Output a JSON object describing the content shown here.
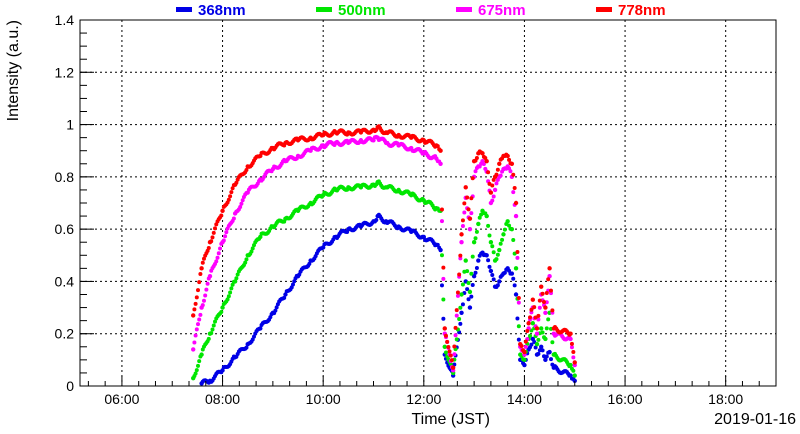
{
  "chart_data": {
    "type": "scatter",
    "xlabel": "Time (JST)",
    "ylabel": "Intensity (a.u.)",
    "date_label": "2019-01-16",
    "xlim": [
      "05:10",
      "19:00"
    ],
    "ylim": [
      0,
      1.4
    ],
    "x_ticks": [
      "06:00",
      "08:00",
      "10:00",
      "12:00",
      "14:00",
      "16:00",
      "18:00"
    ],
    "y_ticks": [
      "0",
      "0.2",
      "0.4",
      "0.6",
      "0.8",
      "1",
      "1.2",
      "1.4"
    ],
    "grid": true,
    "legend_position": "top",
    "series": [
      {
        "name": "368nm",
        "color": "#0000e6",
        "points": [
          [
            "07:35",
            0.01
          ],
          [
            "07:45",
            0.02
          ],
          [
            "08:00",
            0.06
          ],
          [
            "08:15",
            0.11
          ],
          [
            "08:30",
            0.16
          ],
          [
            "08:45",
            0.22
          ],
          [
            "09:00",
            0.28
          ],
          [
            "09:15",
            0.35
          ],
          [
            "09:30",
            0.42
          ],
          [
            "09:45",
            0.48
          ],
          [
            "10:00",
            0.53
          ],
          [
            "10:15",
            0.57
          ],
          [
            "10:30",
            0.6
          ],
          [
            "10:45",
            0.61
          ],
          [
            "11:00",
            0.63
          ],
          [
            "11:05",
            0.65
          ],
          [
            "11:15",
            0.63
          ],
          [
            "11:30",
            0.61
          ],
          [
            "11:45",
            0.59
          ],
          [
            "12:00",
            0.57
          ],
          [
            "12:15",
            0.54
          ],
          [
            "12:20",
            0.52
          ],
          [
            "12:25",
            0.12
          ],
          [
            "12:35",
            0.04
          ],
          [
            "12:45",
            0.28
          ],
          [
            "12:50",
            0.4
          ],
          [
            "12:55",
            0.3
          ],
          [
            "13:00",
            0.42
          ],
          [
            "13:05",
            0.48
          ],
          [
            "13:10",
            0.51
          ],
          [
            "13:15",
            0.5
          ],
          [
            "13:20",
            0.44
          ],
          [
            "13:25",
            0.38
          ],
          [
            "13:30",
            0.4
          ],
          [
            "13:35",
            0.43
          ],
          [
            "13:40",
            0.45
          ],
          [
            "13:45",
            0.43
          ],
          [
            "13:50",
            0.35
          ],
          [
            "13:55",
            0.1
          ],
          [
            "14:00",
            0.08
          ],
          [
            "14:05",
            0.14
          ],
          [
            "14:10",
            0.18
          ],
          [
            "14:15",
            0.12
          ],
          [
            "14:20",
            0.15
          ],
          [
            "14:25",
            0.1
          ],
          [
            "14:30",
            0.13
          ],
          [
            "14:35",
            0.07
          ],
          [
            "14:55",
            0.04
          ],
          [
            "15:00",
            0.02
          ]
        ]
      },
      {
        "name": "500nm",
        "color": "#00e600",
        "points": [
          [
            "07:25",
            0.03
          ],
          [
            "07:35",
            0.12
          ],
          [
            "07:45",
            0.2
          ],
          [
            "08:00",
            0.3
          ],
          [
            "08:15",
            0.4
          ],
          [
            "08:30",
            0.5
          ],
          [
            "08:45",
            0.57
          ],
          [
            "09:00",
            0.61
          ],
          [
            "09:15",
            0.64
          ],
          [
            "09:30",
            0.67
          ],
          [
            "09:45",
            0.7
          ],
          [
            "10:00",
            0.73
          ],
          [
            "10:15",
            0.75
          ],
          [
            "10:30",
            0.76
          ],
          [
            "10:45",
            0.76
          ],
          [
            "11:00",
            0.77
          ],
          [
            "11:05",
            0.78
          ],
          [
            "11:15",
            0.76
          ],
          [
            "11:30",
            0.75
          ],
          [
            "11:45",
            0.73
          ],
          [
            "12:00",
            0.71
          ],
          [
            "12:15",
            0.68
          ],
          [
            "12:20",
            0.67
          ],
          [
            "12:25",
            0.15
          ],
          [
            "12:35",
            0.05
          ],
          [
            "12:45",
            0.35
          ],
          [
            "12:50",
            0.48
          ],
          [
            "12:55",
            0.36
          ],
          [
            "13:00",
            0.55
          ],
          [
            "13:05",
            0.62
          ],
          [
            "13:10",
            0.67
          ],
          [
            "13:15",
            0.65
          ],
          [
            "13:20",
            0.55
          ],
          [
            "13:25",
            0.48
          ],
          [
            "13:30",
            0.52
          ],
          [
            "13:35",
            0.58
          ],
          [
            "13:40",
            0.63
          ],
          [
            "13:45",
            0.6
          ],
          [
            "13:50",
            0.45
          ],
          [
            "13:55",
            0.12
          ],
          [
            "14:00",
            0.1
          ],
          [
            "14:05",
            0.18
          ],
          [
            "14:10",
            0.24
          ],
          [
            "14:15",
            0.16
          ],
          [
            "14:20",
            0.22
          ],
          [
            "14:25",
            0.18
          ],
          [
            "14:30",
            0.28
          ],
          [
            "14:35",
            0.12
          ],
          [
            "14:55",
            0.08
          ],
          [
            "15:00",
            0.04
          ]
        ]
      },
      {
        "name": "675nm",
        "color": "#ff00ff",
        "points": [
          [
            "07:25",
            0.14
          ],
          [
            "07:35",
            0.3
          ],
          [
            "07:45",
            0.42
          ],
          [
            "08:00",
            0.55
          ],
          [
            "08:15",
            0.66
          ],
          [
            "08:30",
            0.74
          ],
          [
            "08:45",
            0.79
          ],
          [
            "09:00",
            0.83
          ],
          [
            "09:15",
            0.86
          ],
          [
            "09:30",
            0.88
          ],
          [
            "09:45",
            0.9
          ],
          [
            "10:00",
            0.92
          ],
          [
            "10:15",
            0.93
          ],
          [
            "10:30",
            0.93
          ],
          [
            "10:45",
            0.94
          ],
          [
            "11:00",
            0.94
          ],
          [
            "11:05",
            0.95
          ],
          [
            "11:15",
            0.93
          ],
          [
            "11:30",
            0.92
          ],
          [
            "11:45",
            0.91
          ],
          [
            "12:00",
            0.89
          ],
          [
            "12:15",
            0.87
          ],
          [
            "12:20",
            0.85
          ],
          [
            "12:25",
            0.2
          ],
          [
            "12:35",
            0.06
          ],
          [
            "12:45",
            0.55
          ],
          [
            "12:50",
            0.72
          ],
          [
            "12:55",
            0.6
          ],
          [
            "13:00",
            0.8
          ],
          [
            "13:05",
            0.84
          ],
          [
            "13:10",
            0.86
          ],
          [
            "13:15",
            0.82
          ],
          [
            "13:20",
            0.7
          ],
          [
            "13:25",
            0.75
          ],
          [
            "13:30",
            0.8
          ],
          [
            "13:35",
            0.83
          ],
          [
            "13:40",
            0.84
          ],
          [
            "13:45",
            0.8
          ],
          [
            "13:50",
            0.65
          ],
          [
            "13:55",
            0.15
          ],
          [
            "14:00",
            0.12
          ],
          [
            "14:05",
            0.22
          ],
          [
            "14:10",
            0.3
          ],
          [
            "14:15",
            0.2
          ],
          [
            "14:20",
            0.35
          ],
          [
            "14:25",
            0.28
          ],
          [
            "14:30",
            0.42
          ],
          [
            "14:35",
            0.2
          ],
          [
            "14:55",
            0.18
          ],
          [
            "15:00",
            0.08
          ]
        ]
      },
      {
        "name": "778nm",
        "color": "#ff0000",
        "points": [
          [
            "07:25",
            0.27
          ],
          [
            "07:35",
            0.45
          ],
          [
            "07:45",
            0.55
          ],
          [
            "08:00",
            0.67
          ],
          [
            "08:15",
            0.77
          ],
          [
            "08:30",
            0.84
          ],
          [
            "08:45",
            0.88
          ],
          [
            "09:00",
            0.91
          ],
          [
            "09:15",
            0.93
          ],
          [
            "09:30",
            0.94
          ],
          [
            "09:45",
            0.95
          ],
          [
            "10:00",
            0.96
          ],
          [
            "10:15",
            0.97
          ],
          [
            "10:30",
            0.97
          ],
          [
            "10:45",
            0.97
          ],
          [
            "11:00",
            0.98
          ],
          [
            "11:05",
            0.99
          ],
          [
            "11:15",
            0.97
          ],
          [
            "11:30",
            0.96
          ],
          [
            "11:45",
            0.95
          ],
          [
            "12:00",
            0.94
          ],
          [
            "12:15",
            0.92
          ],
          [
            "12:20",
            0.9
          ],
          [
            "12:25",
            0.22
          ],
          [
            "12:35",
            0.07
          ],
          [
            "12:45",
            0.58
          ],
          [
            "12:50",
            0.76
          ],
          [
            "12:55",
            0.64
          ],
          [
            "13:00",
            0.86
          ],
          [
            "13:05",
            0.89
          ],
          [
            "13:10",
            0.89
          ],
          [
            "13:15",
            0.86
          ],
          [
            "13:20",
            0.74
          ],
          [
            "13:25",
            0.8
          ],
          [
            "13:30",
            0.85
          ],
          [
            "13:35",
            0.88
          ],
          [
            "13:40",
            0.88
          ],
          [
            "13:45",
            0.85
          ],
          [
            "13:50",
            0.7
          ],
          [
            "13:55",
            0.16
          ],
          [
            "14:00",
            0.13
          ],
          [
            "14:05",
            0.24
          ],
          [
            "14:10",
            0.33
          ],
          [
            "14:15",
            0.22
          ],
          [
            "14:20",
            0.38
          ],
          [
            "14:25",
            0.3
          ],
          [
            "14:30",
            0.45
          ],
          [
            "14:35",
            0.22
          ],
          [
            "14:55",
            0.2
          ],
          [
            "15:00",
            0.09
          ]
        ]
      }
    ]
  }
}
